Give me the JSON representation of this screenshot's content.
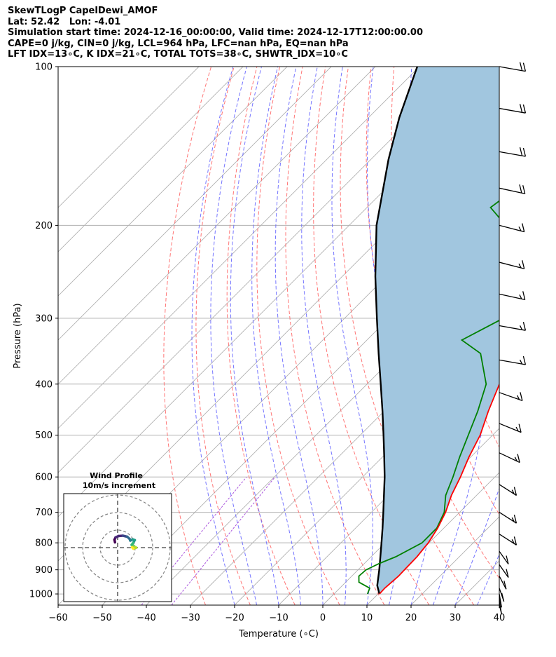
{
  "header": {
    "line1": "SkewTLogP CapelDewi_AMOF",
    "line2": "Lat: 52.42   Lon: -4.01",
    "line3": "Simulation start time: 2024-12-16_00:00:00, Valid time: 2024-12-17T12:00:00.00",
    "line4": "CAPE=0 j/kg, CIN=0 j/kg, LCL=964 hPa, LFC=nan hPa, EQ=nan hPa",
    "line5": "LFT IDX=13∘C, K IDX=21∘C, TOTAL TOTS=38∘C, SHWTR_IDX=10∘C"
  },
  "chart_data": {
    "type": "skewt",
    "xlabel": "Temperature (∘C)",
    "ylabel": "Pressure (hPa)",
    "xlim": [
      -60,
      40
    ],
    "ylim": [
      1050,
      100
    ],
    "x_ticks": [
      "−60",
      "−50",
      "−40",
      "−30",
      "−20",
      "−10",
      "0",
      "10",
      "20",
      "30",
      "40"
    ],
    "y_ticks": [
      "100",
      "200",
      "300",
      "400",
      "500",
      "600",
      "700",
      "800",
      "900",
      "1000"
    ],
    "grid": true,
    "colors": {
      "temperature": "#ff0000",
      "dewpoint": "#008000",
      "parcel": "#000000",
      "shade": "#a1c6df",
      "dry_adiabat": "#ff6666",
      "moist_adiabat": "#6666ff",
      "mixing_ratio": "#aa55dd",
      "isotherm": "#b0b0b0"
    },
    "temperature_profile": [
      {
        "p": 1000,
        "t": 10.3
      },
      {
        "p": 975,
        "t": 10.2
      },
      {
        "p": 950,
        "t": 10.4
      },
      {
        "p": 925,
        "t": 10.6
      },
      {
        "p": 900,
        "t": 10.5
      },
      {
        "p": 850,
        "t": 10.4
      },
      {
        "p": 800,
        "t": 9.8
      },
      {
        "p": 750,
        "t": 8.6
      },
      {
        "p": 700,
        "t": 6.8
      },
      {
        "p": 650,
        "t": 4.3
      },
      {
        "p": 600,
        "t": 2.2
      },
      {
        "p": 550,
        "t": -0.4
      },
      {
        "p": 500,
        "t": -2.8
      },
      {
        "p": 450,
        "t": -6.4
      },
      {
        "p": 400,
        "t": -10.0
      },
      {
        "p": 350,
        "t": -14.6
      },
      {
        "p": 300,
        "t": -21.0
      },
      {
        "p": 250,
        "t": -30.5
      },
      {
        "p": 200,
        "t": -42.5
      },
      {
        "p": 190,
        "t": -45.0
      },
      {
        "p": 180,
        "t": -44.5
      },
      {
        "p": 170,
        "t": -42.0
      },
      {
        "p": 150,
        "t": -38.0
      },
      {
        "p": 130,
        "t": -35.5
      },
      {
        "p": 115,
        "t": -34.6
      },
      {
        "p": 100,
        "t": -35.2
      }
    ],
    "dewpoint_profile": [
      {
        "p": 1000,
        "t": 7.6
      },
      {
        "p": 975,
        "t": 6.8
      },
      {
        "p": 950,
        "t": 3.0
      },
      {
        "p": 925,
        "t": 1.6
      },
      {
        "p": 900,
        "t": 1.8
      },
      {
        "p": 875,
        "t": 3.4
      },
      {
        "p": 850,
        "t": 5.6
      },
      {
        "p": 800,
        "t": 8.4
      },
      {
        "p": 750,
        "t": 8.4
      },
      {
        "p": 700,
        "t": 6.5
      },
      {
        "p": 650,
        "t": 3.0
      },
      {
        "p": 600,
        "t": 0.5
      },
      {
        "p": 550,
        "t": -2.5
      },
      {
        "p": 500,
        "t": -5.5
      },
      {
        "p": 450,
        "t": -8.8
      },
      {
        "p": 400,
        "t": -13.0
      },
      {
        "p": 350,
        "t": -21.2
      },
      {
        "p": 330,
        "t": -28.5
      },
      {
        "p": 300,
        "t": -24.0
      },
      {
        "p": 290,
        "t": -24.5
      },
      {
        "p": 250,
        "t": -31.5
      },
      {
        "p": 200,
        "t": -44.5
      },
      {
        "p": 185,
        "t": -52.0
      },
      {
        "p": 170,
        "t": -50.5
      },
      {
        "p": 150,
        "t": -47.0
      },
      {
        "p": 130,
        "t": -42.5
      },
      {
        "p": 115,
        "t": -38.5
      },
      {
        "p": 100,
        "t": -35.8
      }
    ],
    "parcel_profile": [
      {
        "p": 1000,
        "t": 10.3
      },
      {
        "p": 964,
        "t": 7.9
      },
      {
        "p": 900,
        "t": 4.8
      },
      {
        "p": 850,
        "t": 2.1
      },
      {
        "p": 800,
        "t": -0.8
      },
      {
        "p": 750,
        "t": -3.9
      },
      {
        "p": 700,
        "t": -7.3
      },
      {
        "p": 650,
        "t": -11.0
      },
      {
        "p": 600,
        "t": -15.0
      },
      {
        "p": 550,
        "t": -19.6
      },
      {
        "p": 500,
        "t": -24.7
      },
      {
        "p": 450,
        "t": -30.4
      },
      {
        "p": 400,
        "t": -36.9
      },
      {
        "p": 350,
        "t": -44.3
      },
      {
        "p": 300,
        "t": -52.7
      },
      {
        "p": 250,
        "t": -62.5
      },
      {
        "p": 200,
        "t": -73.8
      },
      {
        "p": 150,
        "t": -86.0
      },
      {
        "p": 125,
        "t": -93.0
      },
      {
        "p": 100,
        "t": -100.5
      }
    ],
    "wind_barbs": [
      {
        "p": 100,
        "speed_kt": 20,
        "dir_deg": 280
      },
      {
        "p": 120,
        "speed_kt": 20,
        "dir_deg": 280
      },
      {
        "p": 145,
        "speed_kt": 20,
        "dir_deg": 280
      },
      {
        "p": 170,
        "speed_kt": 20,
        "dir_deg": 285
      },
      {
        "p": 200,
        "speed_kt": 15,
        "dir_deg": 290
      },
      {
        "p": 235,
        "speed_kt": 15,
        "dir_deg": 290
      },
      {
        "p": 270,
        "speed_kt": 15,
        "dir_deg": 285
      },
      {
        "p": 310,
        "speed_kt": 15,
        "dir_deg": 280
      },
      {
        "p": 360,
        "speed_kt": 15,
        "dir_deg": 280
      },
      {
        "p": 415,
        "speed_kt": 15,
        "dir_deg": 300
      },
      {
        "p": 475,
        "speed_kt": 15,
        "dir_deg": 305
      },
      {
        "p": 540,
        "speed_kt": 15,
        "dir_deg": 310
      },
      {
        "p": 620,
        "speed_kt": 15,
        "dir_deg": 320
      },
      {
        "p": 700,
        "speed_kt": 15,
        "dir_deg": 320
      },
      {
        "p": 770,
        "speed_kt": 15,
        "dir_deg": 320
      },
      {
        "p": 830,
        "speed_kt": 10,
        "dir_deg": 340
      },
      {
        "p": 880,
        "speed_kt": 10,
        "dir_deg": 340
      },
      {
        "p": 925,
        "speed_kt": 10,
        "dir_deg": 345
      },
      {
        "p": 975,
        "speed_kt": 10,
        "dir_deg": 350
      },
      {
        "p": 1000,
        "speed_kt": 10,
        "dir_deg": 355
      },
      {
        "p": 1030,
        "speed_kt": 10,
        "dir_deg": 355
      }
    ]
  },
  "inset": {
    "title1": "Wind Profile",
    "title2": "10m/s increment",
    "hodograph": [
      {
        "u": -1.5,
        "v": 3.0
      },
      {
        "u": -1.8,
        "v": 4.5
      },
      {
        "u": -1.2,
        "v": 5.8
      },
      {
        "u": 0.5,
        "v": 6.6
      },
      {
        "u": 3.0,
        "v": 6.8
      },
      {
        "u": 5.5,
        "v": 6.2
      },
      {
        "u": 6.8,
        "v": 5.0
      },
      {
        "u": 7.2,
        "v": 4.0
      },
      {
        "u": 8.6,
        "v": 4.7
      },
      {
        "u": 9.8,
        "v": 4.3
      },
      {
        "u": 8.8,
        "v": 2.6
      },
      {
        "u": 8.0,
        "v": 1.6
      },
      {
        "u": 9.2,
        "v": 1.0
      },
      {
        "u": 9.5,
        "v": 0.2
      },
      {
        "u": 10.6,
        "v": 0.0
      },
      {
        "u": 9.0,
        "v": -0.6
      },
      {
        "u": 8.2,
        "v": 0.2
      }
    ]
  }
}
